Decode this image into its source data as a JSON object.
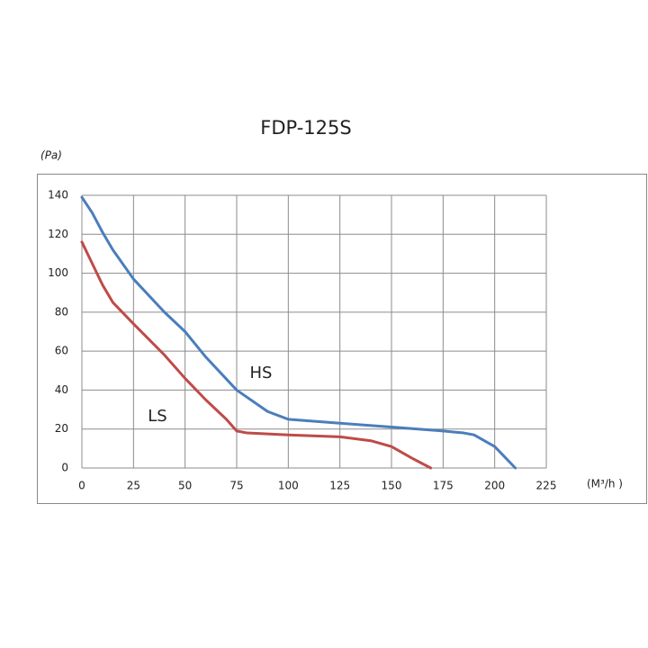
{
  "chart_data": {
    "type": "line",
    "title": "FDP-125S",
    "y_label": "(Pa)",
    "x_label": "(M³/h )",
    "series": [
      {
        "name": "HS",
        "color": "#4a7ebb",
        "x": [
          0,
          5,
          8,
          10,
          15,
          25,
          40,
          50,
          60,
          75,
          90,
          100,
          125,
          150,
          175,
          185,
          190,
          200,
          210
        ],
        "values": [
          139,
          131,
          125,
          121,
          112,
          97,
          80,
          70,
          57,
          40,
          29,
          25,
          23,
          21,
          19,
          18,
          17,
          11,
          0
        ]
      },
      {
        "name": "LS",
        "color": "#be4b48",
        "x": [
          0,
          5,
          10,
          15,
          25,
          40,
          50,
          60,
          70,
          75,
          80,
          100,
          125,
          140,
          150,
          160,
          169
        ],
        "values": [
          116,
          105,
          94,
          85,
          74,
          58,
          46,
          35,
          25,
          19,
          18,
          17,
          16,
          14,
          11,
          5,
          0
        ]
      }
    ],
    "annotations": [
      {
        "text": "HS"
      },
      {
        "text": "LS"
      }
    ],
    "xlim": [
      0,
      225
    ],
    "xticks": [
      0,
      25,
      50,
      75,
      100,
      125,
      150,
      175,
      200,
      225
    ],
    "ylim": [
      0,
      140
    ],
    "yticks": [
      0,
      20,
      40,
      60,
      80,
      100,
      120,
      140
    ],
    "grid": true
  }
}
